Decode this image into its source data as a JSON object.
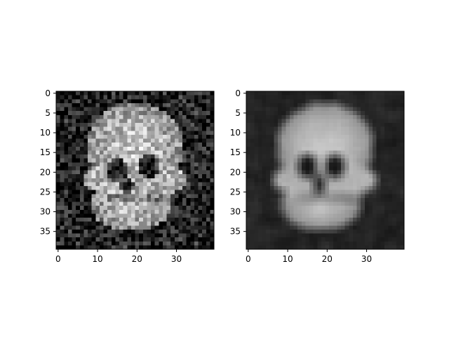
{
  "chart_data": [
    {
      "type": "heatmap",
      "title": "",
      "xlabel": "",
      "ylabel": "",
      "image_size": [
        40,
        40
      ],
      "xlim": [
        -0.5,
        39.5
      ],
      "ylim": [
        39.5,
        -0.5
      ],
      "x_ticks": [
        0,
        10,
        20,
        30
      ],
      "x_tick_labels": [
        "0",
        "10",
        "20",
        "30"
      ],
      "y_ticks": [
        0,
        5,
        10,
        15,
        20,
        25,
        30,
        35
      ],
      "y_tick_labels": [
        "0",
        "5",
        "10",
        "15",
        "20",
        "25",
        "30",
        "35"
      ],
      "colormap": "gray",
      "description": "original noisy skull image",
      "eyes": [
        [
          15,
          19.5
        ],
        [
          23,
          18.5
        ]
      ],
      "nose": [
        17.5,
        23.5
      ],
      "noise": 0.22
    },
    {
      "type": "heatmap",
      "title": "",
      "xlabel": "",
      "ylabel": "",
      "image_size": [
        40,
        40
      ],
      "xlim": [
        -0.5,
        39.5
      ],
      "ylim": [
        39.5,
        -0.5
      ],
      "x_ticks": [
        0,
        10,
        20,
        30
      ],
      "x_tick_labels": [
        "0",
        "10",
        "20",
        "30"
      ],
      "y_ticks": [
        0,
        5,
        10,
        15,
        20,
        25,
        30,
        35
      ],
      "y_tick_labels": [
        "0",
        "5",
        "10",
        "15",
        "20",
        "25",
        "30",
        "35"
      ],
      "colormap": "gray",
      "description": "smoothed / reconstructed skull image",
      "eyes": [
        [
          15,
          18.5
        ],
        [
          22,
          18.5
        ]
      ],
      "nose": [
        18,
        23
      ],
      "noise": 0.06
    }
  ]
}
